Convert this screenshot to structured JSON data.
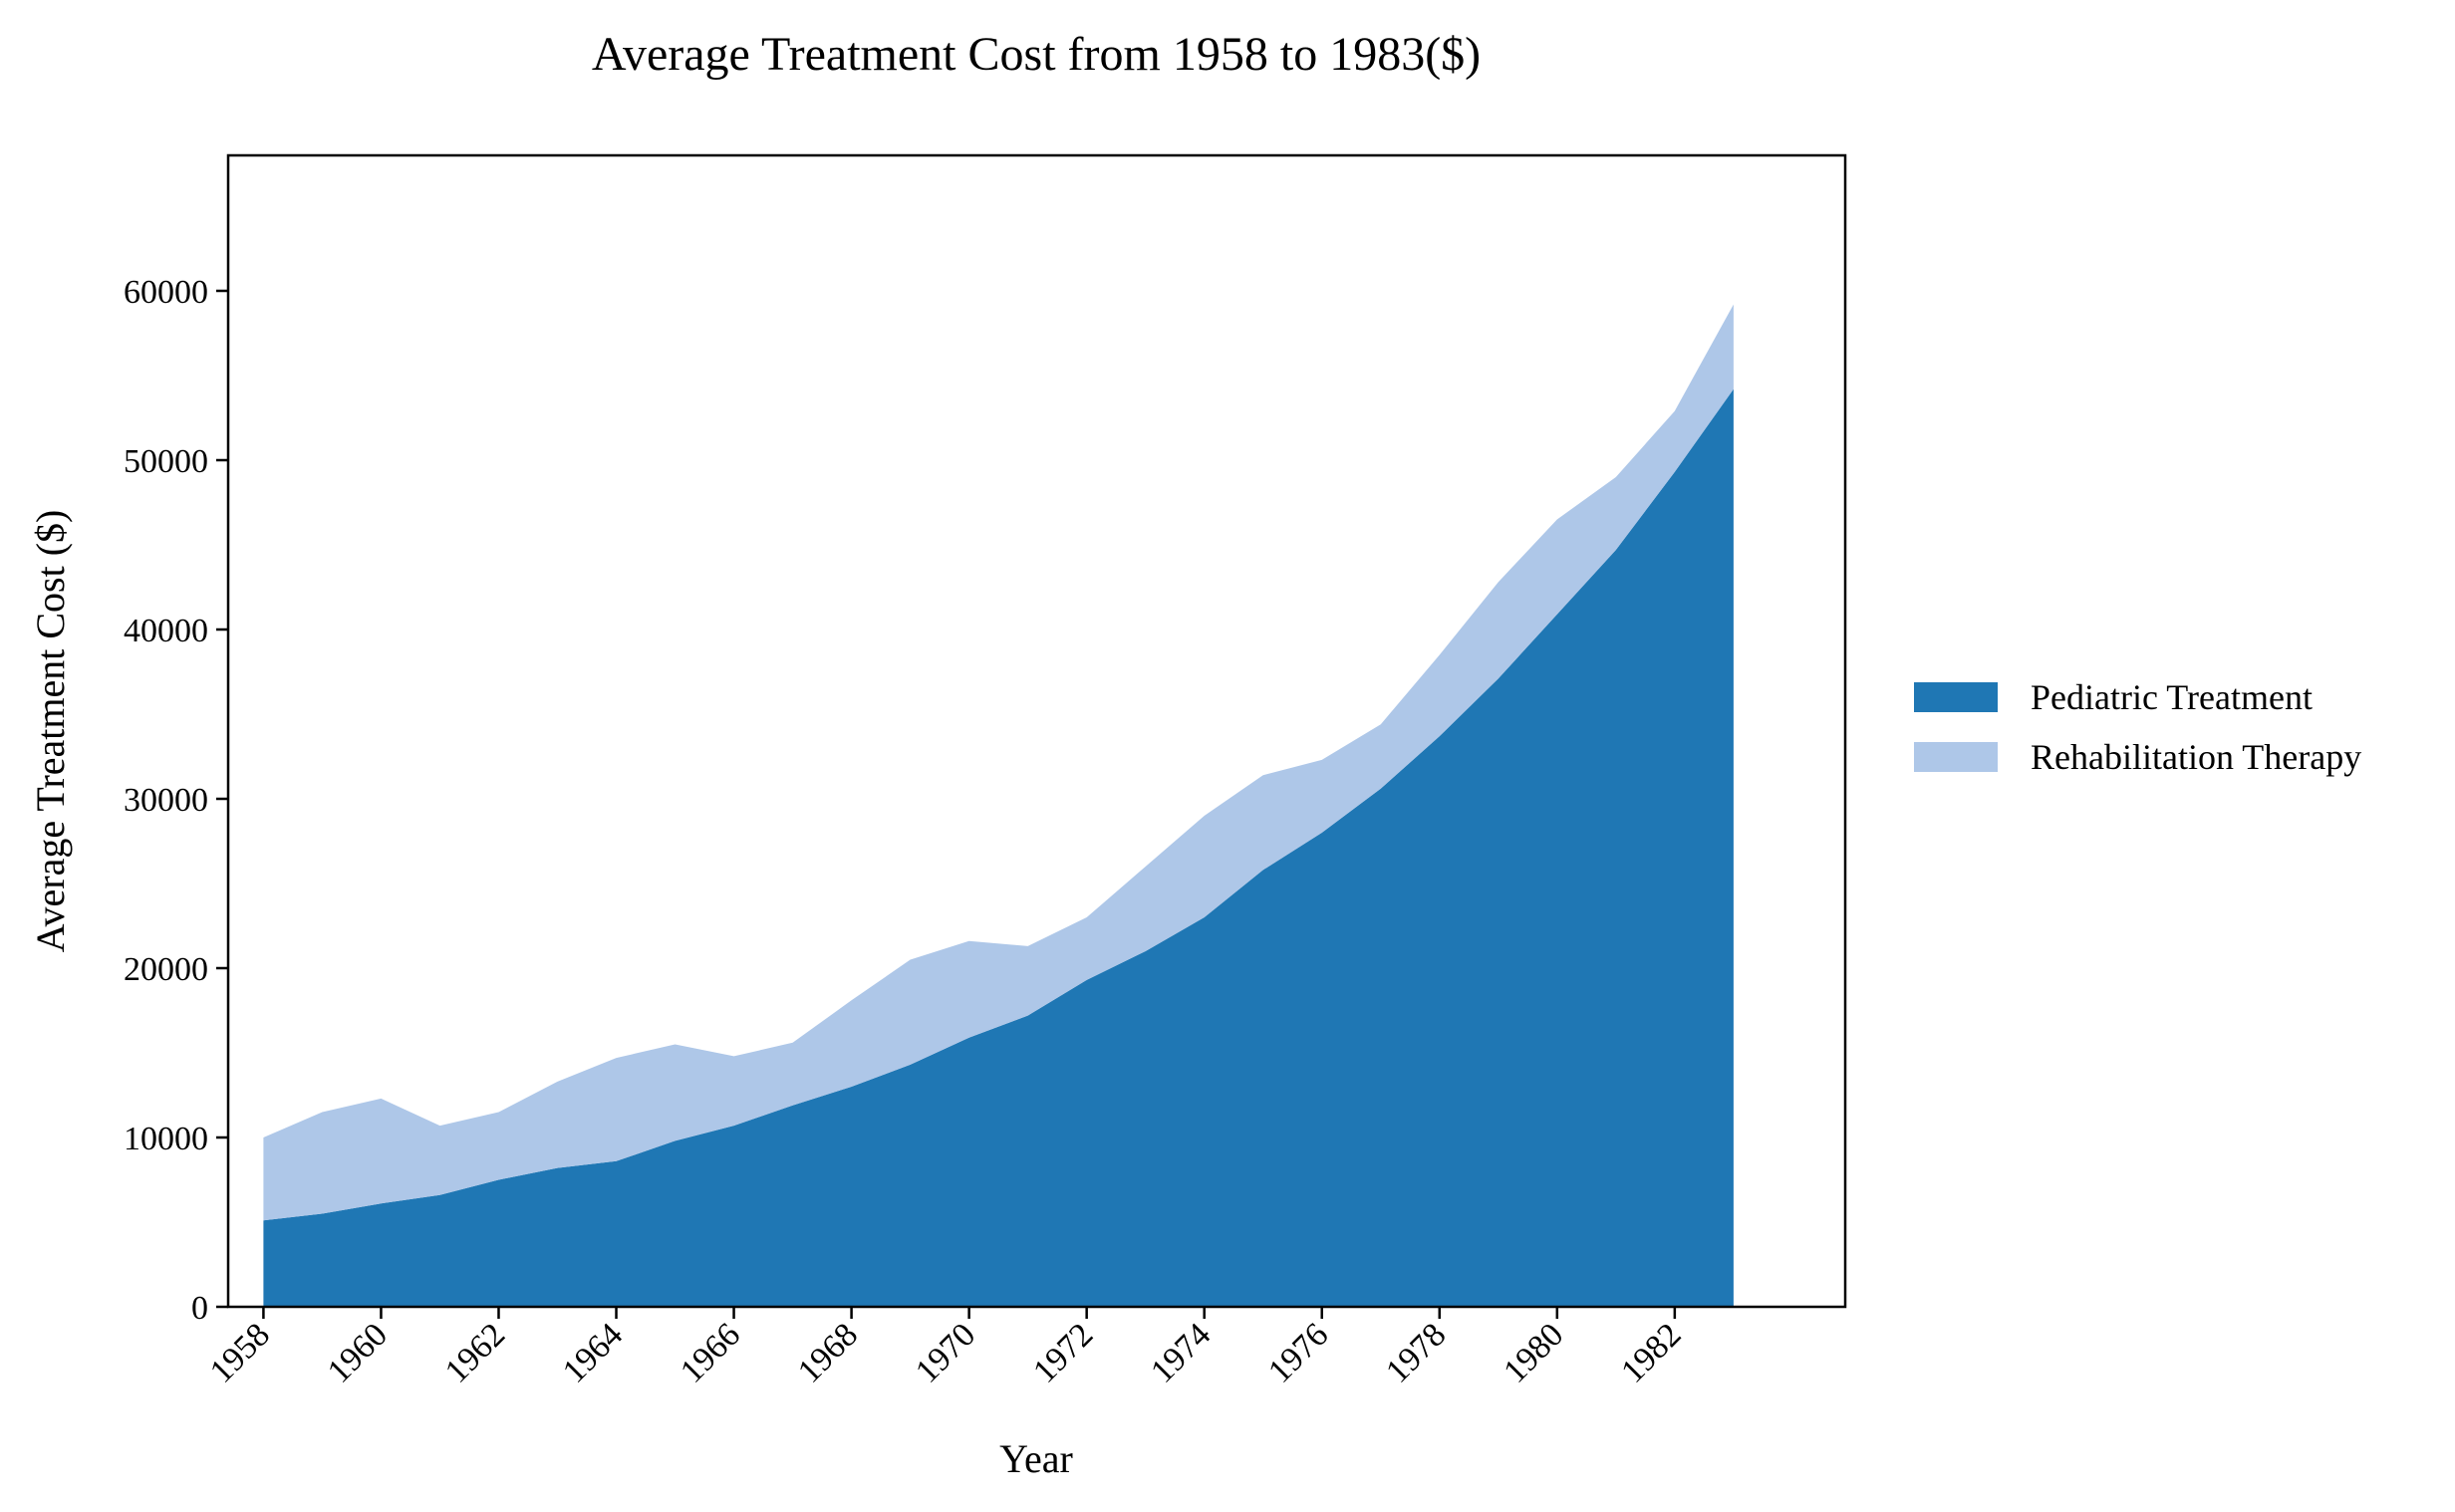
{
  "chart_data": {
    "type": "area",
    "stacked": true,
    "title": "Average Treatment Cost from 1958 to 1983($)",
    "xlabel": "Year",
    "ylabel": "Average Treatment Cost ($)",
    "x": [
      1958,
      1959,
      1960,
      1961,
      1962,
      1963,
      1964,
      1965,
      1966,
      1967,
      1968,
      1969,
      1970,
      1971,
      1972,
      1973,
      1974,
      1975,
      1976,
      1977,
      1978,
      1979,
      1980,
      1981,
      1982,
      1983
    ],
    "xticks": [
      "1958",
      "1960",
      "1962",
      "1964",
      "1966",
      "1968",
      "1970",
      "1972",
      "1974",
      "1976",
      "1978",
      "1980",
      "1982"
    ],
    "yticks": [
      "0",
      "10000",
      "20000",
      "30000",
      "40000",
      "50000",
      "60000"
    ],
    "xlim": [
      1957.4,
      1984.9
    ],
    "ylim": [
      0,
      68000
    ],
    "grid": false,
    "legend_position": "right",
    "series": [
      {
        "name": "Pediatric Treatment",
        "color": "#1f77b4",
        "values": [
          5100,
          5500,
          6100,
          6600,
          7500,
          8200,
          8600,
          9800,
          10700,
          11900,
          13000,
          14300,
          15900,
          17200,
          19300,
          21000,
          23000,
          25800,
          28000,
          30600,
          33700,
          37100,
          40900,
          44700,
          49300,
          54200
        ]
      },
      {
        "name": "Rehabilitation Therapy",
        "color": "#aec7e8",
        "values": [
          4900,
          6000,
          6200,
          4100,
          4000,
          5100,
          6100,
          5700,
          4100,
          3700,
          5100,
          6200,
          5700,
          4100,
          3700,
          5000,
          6000,
          5600,
          4300,
          3800,
          4800,
          5700,
          5600,
          4300,
          3600,
          5000
        ]
      }
    ]
  }
}
